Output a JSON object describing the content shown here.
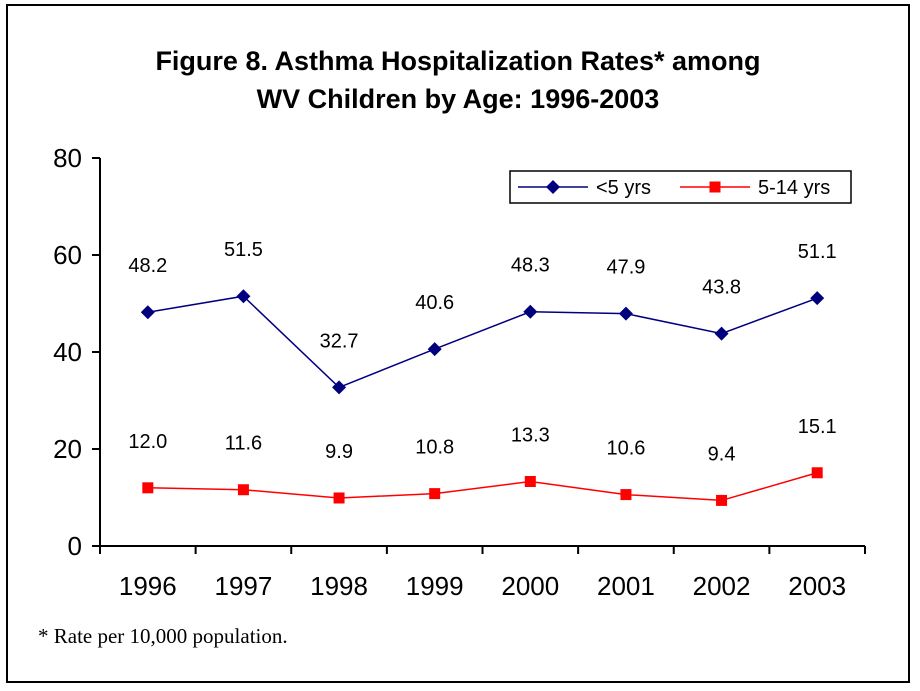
{
  "chart_data": {
    "type": "line",
    "title_lines": [
      "Figure 8.  Asthma Hospitalization Rates* among",
      "WV Children by Age: 1996-2003"
    ],
    "categories": [
      "1996",
      "1997",
      "1998",
      "1999",
      "2000",
      "2001",
      "2002",
      "2003"
    ],
    "series": [
      {
        "name": "<5 yrs",
        "color": "#00007f",
        "marker": "diamond",
        "values": [
          48.2,
          51.5,
          32.7,
          40.6,
          48.3,
          47.9,
          43.8,
          51.1
        ],
        "labels": [
          "48.2",
          "51.5",
          "32.7",
          "40.6",
          "48.3",
          "47.9",
          "43.8",
          "51.1"
        ]
      },
      {
        "name": "5-14 yrs",
        "color": "#ff0000",
        "marker": "square",
        "values": [
          12.0,
          11.6,
          9.9,
          10.8,
          13.3,
          10.6,
          9.4,
          15.1
        ],
        "labels": [
          "12.0",
          "11.6",
          "9.9",
          "10.8",
          "13.3",
          "10.6",
          "9.4",
          "15.1"
        ]
      }
    ],
    "ylim": [
      0,
      80
    ],
    "yticks": [
      "0",
      "20",
      "40",
      "60",
      "80"
    ],
    "grid": false,
    "legend_position": "top-right",
    "footnote": "* Rate per 10,000 population."
  }
}
